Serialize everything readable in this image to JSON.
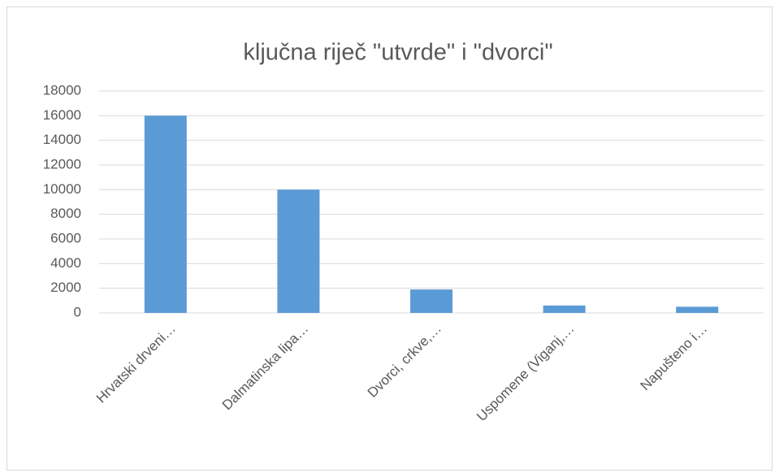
{
  "chart_data": {
    "type": "bar",
    "title": "ključna riječ \"utvrde\" i \"dvorci\"",
    "categories": [
      "Hrvatski drveni…",
      "Dalmatinska lipa…",
      "Dvorci, crkve,…",
      "Uspomene (Viganj,…",
      "Napušteno i…"
    ],
    "values": [
      16000,
      10000,
      1900,
      600,
      500
    ],
    "color": "#5b9bd5",
    "ylim": [
      0,
      18000
    ],
    "yticks": [
      0,
      2000,
      4000,
      6000,
      8000,
      10000,
      12000,
      14000,
      16000,
      18000
    ],
    "grid": true
  }
}
